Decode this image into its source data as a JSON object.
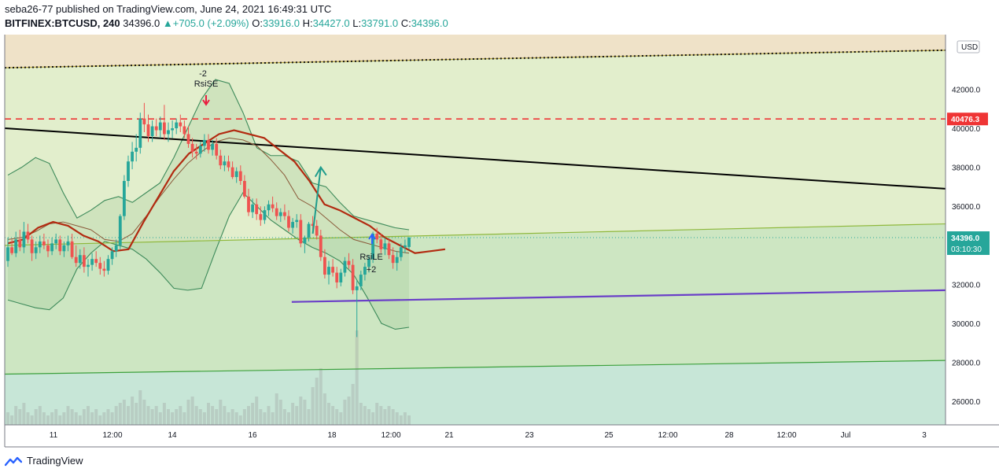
{
  "header": {
    "line1": "seba26-77 published on TradingView.com, June 24, 2021 16:49:31 UTC",
    "symbol": "BITFINEX:BTCUSD, 240",
    "last": "34396.0",
    "change": "+705.0 (+2.09%)",
    "o_label": "O:",
    "o": "33916.0",
    "h_label": "H:",
    "h": "34427.0",
    "l_label": "L:",
    "l": "33791.0",
    "c_label": "C:",
    "c": "34396.0"
  },
  "footer": {
    "brand": "TradingView"
  },
  "colors": {
    "up": "#26a69a",
    "down": "#ef5350",
    "bb": "#3d8a5a",
    "ma_fast": "#b22a10",
    "ma_slow": "#8a5a3a",
    "trend": "#000000",
    "support": "#6a3fc8",
    "resistance": "#ef3535",
    "arrow": "#1f9c8c"
  },
  "chart_data": {
    "type": "candlestick",
    "currency": "USD",
    "ylim": [
      24800,
      44800
    ],
    "y_ticks": [
      26000,
      28000,
      30000,
      32000,
      34000,
      36000,
      38000,
      40000,
      42000
    ],
    "x_ticks": [
      "11",
      "12:00",
      "14",
      "16",
      "18",
      "12:00",
      "21",
      "23",
      "25",
      "12:00",
      "28",
      "12:00",
      "Jul",
      "3"
    ],
    "price_label": "34396.0",
    "countdown": "03:10:30",
    "resistance_label": "40476.3",
    "resistance_level": 40476.3,
    "annotations": [
      {
        "text": "-2",
        "direction": "down"
      },
      {
        "text": "RsiSE",
        "direction": "down"
      },
      {
        "text": "RsiLE",
        "direction": "up"
      },
      {
        "text": "+2",
        "direction": "up"
      }
    ],
    "candles": [
      [
        33200,
        34400,
        32900,
        33900
      ],
      [
        33900,
        34300,
        33500,
        33600
      ],
      [
        33600,
        34700,
        33400,
        34300
      ],
      [
        34300,
        34800,
        33700,
        33900
      ],
      [
        33900,
        35200,
        33600,
        34700
      ],
      [
        34700,
        35100,
        34100,
        34300
      ],
      [
        34300,
        34500,
        33200,
        33600
      ],
      [
        33600,
        34200,
        33300,
        33900
      ],
      [
        33900,
        34500,
        33600,
        34200
      ],
      [
        34200,
        34600,
        33800,
        34000
      ],
      [
        34000,
        34300,
        33400,
        33700
      ],
      [
        33700,
        34400,
        33500,
        34100
      ],
      [
        34100,
        34600,
        33800,
        34300
      ],
      [
        34300,
        34500,
        33500,
        33700
      ],
      [
        33700,
        34200,
        33400,
        34000
      ],
      [
        34000,
        34500,
        33700,
        34200
      ],
      [
        34200,
        34600,
        33300,
        33400
      ],
      [
        33400,
        34000,
        32900,
        33100
      ],
      [
        33100,
        33800,
        32800,
        33500
      ],
      [
        33500,
        33900,
        32600,
        32900
      ],
      [
        32900,
        33300,
        32400,
        33000
      ],
      [
        33000,
        33600,
        32700,
        33300
      ],
      [
        33300,
        33700,
        32900,
        33100
      ],
      [
        33100,
        33400,
        32500,
        32800
      ],
      [
        32800,
        33200,
        32400,
        32700
      ],
      [
        32700,
        33500,
        32500,
        33300
      ],
      [
        33300,
        33900,
        33000,
        33700
      ],
      [
        33700,
        34300,
        33400,
        34000
      ],
      [
        34000,
        35600,
        33800,
        35500
      ],
      [
        35500,
        37600,
        35300,
        37300
      ],
      [
        37300,
        38600,
        37000,
        38300
      ],
      [
        38300,
        39300,
        37900,
        38800
      ],
      [
        38800,
        39700,
        38300,
        39000
      ],
      [
        39000,
        40800,
        38700,
        40500
      ],
      [
        40500,
        41300,
        39800,
        40200
      ],
      [
        40200,
        40700,
        39300,
        39600
      ],
      [
        39600,
        40400,
        39300,
        40100
      ],
      [
        40100,
        40500,
        39600,
        39900
      ],
      [
        39900,
        40600,
        39500,
        40300
      ],
      [
        40300,
        41200,
        39400,
        39700
      ],
      [
        39700,
        40300,
        39300,
        39900
      ],
      [
        39900,
        40400,
        39500,
        40000
      ],
      [
        40000,
        40500,
        39700,
        40300
      ],
      [
        40300,
        40700,
        39800,
        40100
      ],
      [
        40100,
        40400,
        39500,
        39700
      ],
      [
        39700,
        40100,
        39000,
        39200
      ],
      [
        39200,
        39500,
        38500,
        38800
      ],
      [
        38800,
        39200,
        38400,
        38700
      ],
      [
        38700,
        39300,
        38500,
        39100
      ],
      [
        39100,
        39700,
        38800,
        39400
      ],
      [
        39400,
        39700,
        38700,
        38900
      ],
      [
        38900,
        39400,
        38600,
        39200
      ],
      [
        39200,
        39500,
        38400,
        38600
      ],
      [
        38600,
        38900,
        37900,
        38100
      ],
      [
        38100,
        38600,
        37800,
        38300
      ],
      [
        38300,
        38600,
        37800,
        38000
      ],
      [
        38000,
        38300,
        37400,
        37500
      ],
      [
        37500,
        38000,
        37200,
        37800
      ],
      [
        37800,
        38100,
        37100,
        37300
      ],
      [
        37300,
        37600,
        36400,
        36500
      ],
      [
        36500,
        36900,
        35500,
        35700
      ],
      [
        35700,
        36400,
        35400,
        36100
      ],
      [
        36100,
        36400,
        35300,
        35600
      ],
      [
        35600,
        36000,
        35000,
        35300
      ],
      [
        35300,
        36000,
        35100,
        35800
      ],
      [
        35800,
        36300,
        35500,
        36100
      ],
      [
        36100,
        36500,
        35700,
        35900
      ],
      [
        35900,
        36200,
        35300,
        35500
      ],
      [
        35500,
        35900,
        35200,
        35700
      ],
      [
        35700,
        36100,
        35300,
        35500
      ],
      [
        35500,
        35800,
        34700,
        34900
      ],
      [
        34900,
        35400,
        34600,
        35200
      ],
      [
        35200,
        35600,
        34900,
        35300
      ],
      [
        35300,
        35600,
        33900,
        34100
      ],
      [
        34100,
        34500,
        33600,
        34400
      ],
      [
        34400,
        35200,
        34200,
        35100
      ],
      [
        35100,
        35500,
        34800,
        35000
      ],
      [
        35000,
        35300,
        34300,
        34500
      ],
      [
        34500,
        34800,
        33200,
        33400
      ],
      [
        33400,
        33800,
        32300,
        32500
      ],
      [
        32500,
        33200,
        32000,
        32900
      ],
      [
        32900,
        33300,
        32400,
        32600
      ],
      [
        32600,
        32900,
        31800,
        32100
      ],
      [
        32100,
        32800,
        31900,
        32600
      ],
      [
        32600,
        33400,
        32400,
        33200
      ],
      [
        33200,
        33600,
        32800,
        33000
      ],
      [
        33000,
        33300,
        31500,
        31700
      ],
      [
        31700,
        32200,
        29300,
        31900
      ],
      [
        31900,
        32700,
        31700,
        32500
      ],
      [
        32500,
        33100,
        32200,
        32900
      ],
      [
        32900,
        33500,
        32600,
        33300
      ],
      [
        33300,
        34700,
        33100,
        34600
      ],
      [
        34600,
        34900,
        34100,
        34300
      ],
      [
        34300,
        34600,
        33600,
        33800
      ],
      [
        33800,
        34400,
        33500,
        34100
      ],
      [
        34100,
        34300,
        33300,
        33500
      ],
      [
        33500,
        33900,
        32800,
        33100
      ],
      [
        33100,
        33700,
        32700,
        33400
      ],
      [
        33400,
        34100,
        33200,
        33900
      ],
      [
        33900,
        34300,
        33600,
        34000
      ],
      [
        33916,
        34427,
        33791,
        34396
      ]
    ],
    "volume": [
      4,
      3,
      6,
      5,
      7,
      4,
      3,
      5,
      6,
      4,
      3,
      4,
      5,
      3,
      4,
      6,
      5,
      4,
      3,
      5,
      6,
      4,
      5,
      3,
      4,
      5,
      4,
      6,
      7,
      8,
      6,
      9,
      7,
      11,
      8,
      6,
      5,
      6,
      4,
      7,
      5,
      4,
      5,
      6,
      4,
      8,
      9,
      6,
      5,
      4,
      7,
      6,
      5,
      8,
      6,
      4,
      5,
      4,
      3,
      5,
      6,
      7,
      9,
      5,
      4,
      6,
      4,
      10,
      8,
      5,
      4,
      7,
      6,
      9,
      8,
      5,
      12,
      15,
      18,
      10,
      7,
      6,
      5,
      4,
      8,
      9,
      13,
      30,
      7,
      6,
      5,
      4,
      7,
      6,
      5,
      6,
      5,
      4,
      3,
      4,
      3
    ],
    "bb_upper": [
      37600,
      38000,
      38500,
      38200,
      36700,
      35400,
      35800,
      36300,
      36500,
      36200,
      36700,
      37200,
      38500,
      40000,
      41500,
      42500,
      42300,
      40800,
      39000,
      38600,
      38600,
      38300,
      37200,
      37000,
      36200,
      35500,
      35300,
      35100,
      34900,
      34800
    ],
    "bb_lower": [
      31200,
      31000,
      30800,
      30700,
      31300,
      32800,
      33600,
      34200,
      34000,
      33800,
      33300,
      32600,
      31800,
      31700,
      31800,
      33700,
      35500,
      36700,
      36000,
      35300,
      34800,
      34300,
      33900,
      33600,
      33200,
      32500,
      31300,
      30000,
      29700,
      29800
    ],
    "ma_fast": [
      34100,
      34300,
      34900,
      35200,
      35000,
      34500,
      34200,
      33700,
      33800,
      35200,
      36500,
      37800,
      38700,
      39200,
      39700,
      39900,
      39700,
      39500,
      38900,
      38300,
      37300,
      36100,
      35800,
      35400,
      35000,
      34400,
      34000,
      33600,
      33700,
      33800
    ],
    "ma_slow": [
      34300,
      34400,
      34700,
      35100,
      35200,
      35000,
      34800,
      34300,
      34200,
      34600,
      35500,
      36500,
      37400,
      38200,
      38800,
      39300,
      39500,
      39400,
      39100,
      38400,
      37600,
      36400,
      36000,
      35400,
      34800,
      34300,
      34100,
      33900,
      33700,
      33600
    ],
    "trendline_black": [
      [
        0,
        40000
      ],
      [
        118,
        36900
      ]
    ],
    "trendline_green_upper": [
      [
        0,
        34000
      ],
      [
        118,
        35100
      ]
    ],
    "trendline_green_lower": [
      [
        0,
        27400
      ],
      [
        118,
        28100
      ]
    ],
    "trendline_orange_dotted": [
      [
        0,
        43100
      ],
      [
        118,
        44000
      ]
    ],
    "support_line": [
      [
        36,
        31100
      ],
      [
        118,
        31700
      ]
    ],
    "projection_arrow": [
      [
        76,
        34600
      ],
      [
        78,
        38000
      ]
    ]
  }
}
